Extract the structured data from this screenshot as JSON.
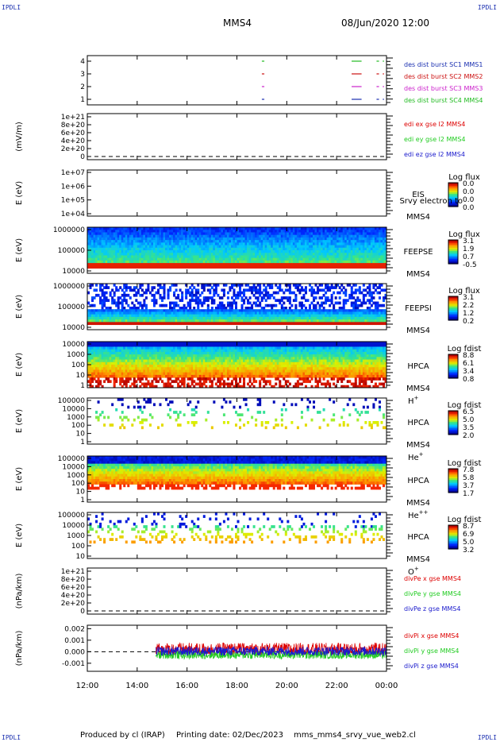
{
  "corners": {
    "tl": "IPDLI",
    "tr": "IPDLI",
    "bl": "IPDLI",
    "br": "IPDLI"
  },
  "header": {
    "title": "MMS4",
    "datetime": "08/Jun/2020 12:00"
  },
  "footer": {
    "produced_by": "Produced by cl (IRAP)",
    "printing_date": "Printing date: 02/Dec/2023",
    "script_name": "mms_mms4_srvy_vue_web2.cl"
  },
  "colors": {
    "mms1": "#1a2fb0",
    "mms2": "#cc1111",
    "mms3": "#cc22cc",
    "mms4": "#22bb22",
    "x": "#dd0000",
    "y": "#22cc22",
    "z": "#1a1acc"
  },
  "time_axis": {
    "ticks": [
      "12:00",
      "14:00",
      "16:00",
      "18:00",
      "20:00",
      "22:00",
      "00:00"
    ],
    "start_hour": 12,
    "end_hour": 24
  },
  "chart_data": [
    {
      "type": "line",
      "name": "des dist burst",
      "yticks": [
        "1",
        "2",
        "3",
        "4"
      ],
      "series": [
        {
          "name": "des dist burst SC1 MMS1",
          "level": 1,
          "color": "#1a2fb0",
          "intervals": [
            [
              19.0,
              19.1
            ],
            [
              22.6,
              23.0
            ],
            [
              23.6,
              23.7
            ],
            [
              23.85,
              23.9
            ]
          ]
        },
        {
          "name": "des dist burst SC2 MMS2",
          "level": 3,
          "color": "#cc1111",
          "intervals": [
            [
              19.0,
              19.1
            ],
            [
              22.6,
              23.0
            ],
            [
              23.6,
              23.7
            ],
            [
              23.85,
              23.9
            ]
          ]
        },
        {
          "name": "des dist burst SC3 MMS3",
          "level": 2,
          "color": "#cc22cc",
          "intervals": [
            [
              19.0,
              19.1
            ],
            [
              22.6,
              23.0
            ],
            [
              23.6,
              23.7
            ],
            [
              23.85,
              23.9
            ]
          ]
        },
        {
          "name": "des dist burst SC4 MMS4",
          "level": 4,
          "color": "#22bb22",
          "intervals": [
            [
              19.0,
              19.1
            ],
            [
              22.6,
              23.0
            ],
            [
              23.6,
              23.7
            ],
            [
              23.85,
              23.9
            ]
          ]
        }
      ]
    },
    {
      "type": "line",
      "name": "edi e gse l2",
      "ylabel": "(mV/m)",
      "yticks": [
        "1e+21",
        "8e+20",
        "6e+20",
        "4e+20",
        "2e+20",
        "0"
      ],
      "series": [
        {
          "name": "edi ex gse l2 MMS4",
          "color": "#dd0000"
        },
        {
          "name": "edi ey gse l2 MMS4",
          "color": "#22cc22"
        },
        {
          "name": "edi ez gse l2 MMS4",
          "color": "#1a1acc"
        }
      ]
    },
    {
      "type": "heatmap",
      "ylabel": "E (eV)",
      "yticks": [
        "1e+07",
        "1e+06",
        "1e+05",
        "1e+04"
      ],
      "instrument": "EIS",
      "subtitle": "Srvy electron to",
      "spacecraft": "MMS4",
      "colorbar_title": "Log flux",
      "colorbar_ticks": [
        "0.0",
        "0.0",
        "0.0",
        "0.0"
      ],
      "empty": true
    },
    {
      "type": "heatmap",
      "ylabel": "E (eV)",
      "yticks": [
        "1000000",
        "100000",
        "10000"
      ],
      "instrument": "FEEPSE",
      "spacecraft": "MMS4",
      "colorbar_title": "Log flux",
      "colorbar_ticks": [
        "3.1",
        "1.9",
        "0.7",
        "-0.5"
      ],
      "coverage": [
        12.0,
        24.0
      ]
    },
    {
      "type": "heatmap",
      "ylabel": "E (eV)",
      "yticks": [
        "1000000",
        "100000",
        "10000"
      ],
      "instrument": "FEEPSI",
      "spacecraft": "MMS4",
      "colorbar_title": "Log flux",
      "colorbar_ticks": [
        "3.1",
        "2.2",
        "1.2",
        "0.2"
      ],
      "coverage": [
        12.0,
        24.0
      ]
    },
    {
      "type": "heatmap",
      "ylabel": "E (eV)",
      "yticks": [
        "10000",
        "1000",
        "100",
        "10",
        "1"
      ],
      "instrument": "HPCA",
      "spacecraft": "MMS4",
      "species": "H",
      "species_sup": "+",
      "colorbar_title": "Log fdist",
      "colorbar_ticks": [
        "8.8",
        "6.1",
        "3.4",
        "0.8"
      ],
      "coverage": [
        12.0,
        24.0
      ]
    },
    {
      "type": "heatmap",
      "ylabel": "E (eV)",
      "yticks": [
        "100000",
        "10000",
        "1000",
        "100",
        "10",
        "1"
      ],
      "instrument": "HPCA",
      "spacecraft": "MMS4",
      "species": "He",
      "species_sup": "+",
      "colorbar_title": "Log fdist",
      "colorbar_ticks": [
        "6.5",
        "5.0",
        "3.5",
        "2.0"
      ],
      "coverage": [
        12.0,
        24.0
      ]
    },
    {
      "type": "heatmap",
      "ylabel": "E (eV)",
      "yticks": [
        "100000",
        "10000",
        "1000",
        "100",
        "10",
        "1"
      ],
      "instrument": "HPCA",
      "spacecraft": "MMS4",
      "species": "He",
      "species_sup": "++",
      "colorbar_title": "Log fdist",
      "colorbar_ticks": [
        "7.8",
        "5.8",
        "3.7",
        "1.7"
      ],
      "coverage": [
        12.0,
        24.0
      ]
    },
    {
      "type": "heatmap",
      "ylabel": "E (eV)",
      "yticks": [
        "100000",
        "10000",
        "1000",
        "100",
        "10"
      ],
      "instrument": "HPCA",
      "spacecraft": "MMS4",
      "species": "O",
      "species_sup": "+",
      "colorbar_title": "Log fdist",
      "colorbar_ticks": [
        "8.7",
        "6.9",
        "5.0",
        "3.2"
      ],
      "coverage": [
        12.0,
        24.0
      ]
    },
    {
      "type": "line",
      "name": "divPe gse",
      "ylabel": "(nPa/km)",
      "yticks": [
        "1e+21",
        "8e+20",
        "6e+20",
        "4e+20",
        "2e+20",
        "0"
      ],
      "series": [
        {
          "name": "divPe x gse MMS4",
          "color": "#dd0000"
        },
        {
          "name": "divPe y gse MMS4",
          "color": "#22cc22"
        },
        {
          "name": "divPe z gse MMS4",
          "color": "#1a1acc"
        }
      ]
    },
    {
      "type": "line",
      "name": "divPi gse",
      "ylabel": "(nPa/km)",
      "yticks": [
        "0.002",
        "0.001",
        "0.000",
        "-0.001"
      ],
      "ylim": [
        -0.0017,
        0.0023
      ],
      "xstart": 14.75,
      "series": [
        {
          "name": "divPi x gse MMS4",
          "color": "#dd0000",
          "mean": 0.00022,
          "spread": 0.00055
        },
        {
          "name": "divPi y gse MMS4",
          "color": "#22cc22",
          "mean": -0.00028,
          "spread": 0.00035
        },
        {
          "name": "divPi z gse MMS4",
          "color": "#1a1acc",
          "mean": 5e-05,
          "spread": 0.0004
        }
      ]
    }
  ]
}
